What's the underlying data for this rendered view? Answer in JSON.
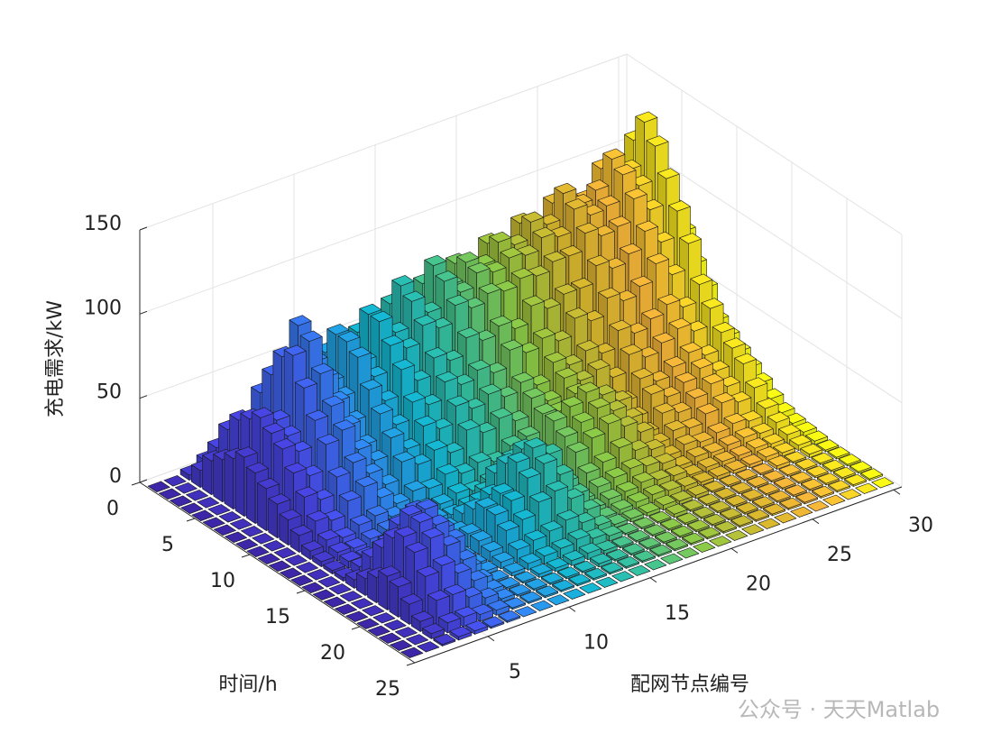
{
  "chart_data": {
    "type": "bar3",
    "xlabel": "配网节点编号",
    "ylabel": "时间/h",
    "zlabel": "充电需求/kW",
    "watermark": "公众号 · 天天Matlab",
    "xlim": [
      0.5,
      30.5
    ],
    "ylim": [
      0,
      25
    ],
    "zlim": [
      0,
      150
    ],
    "xticks": [
      5,
      10,
      15,
      20,
      25,
      30
    ],
    "yticks": [
      0,
      5,
      10,
      15,
      20,
      25
    ],
    "zticks": [
      0,
      50,
      100,
      150
    ],
    "grid": true,
    "colormap": [
      "#3e26a8",
      "#4a4cf0",
      "#2f8ff5",
      "#14b9d6",
      "#3ac49a",
      "#8fcb44",
      "#d8b92e",
      "#fbb83a",
      "#f9fb15"
    ],
    "nodes": [
      1,
      2,
      3,
      4,
      5,
      6,
      7,
      8,
      9,
      10,
      11,
      12,
      13,
      14,
      15,
      16,
      17,
      18,
      19,
      20,
      21,
      22,
      23,
      24,
      25,
      26,
      27,
      28,
      29,
      30
    ],
    "hours": [
      1,
      2,
      3,
      4,
      5,
      6,
      7,
      8,
      9,
      10,
      11,
      12,
      13,
      14,
      15,
      16,
      17,
      18,
      19,
      20,
      21,
      22,
      23,
      24
    ],
    "z": [
      [
        0,
        0,
        3,
        8,
        5,
        12,
        10,
        15,
        8,
        20,
        12,
        18,
        25,
        15,
        30,
        22,
        28,
        35,
        30,
        40,
        38,
        45,
        50,
        42,
        55,
        48,
        60,
        52,
        70,
        45
      ],
      [
        0,
        0,
        10,
        20,
        15,
        30,
        25,
        35,
        20,
        40,
        30,
        45,
        35,
        50,
        40,
        55,
        45,
        60,
        50,
        65,
        55,
        70,
        60,
        80,
        70,
        75,
        85,
        80,
        95,
        60
      ],
      [
        0,
        0,
        20,
        35,
        30,
        50,
        45,
        55,
        40,
        60,
        45,
        65,
        55,
        75,
        60,
        80,
        70,
        85,
        75,
        90,
        80,
        95,
        85,
        100,
        90,
        95,
        110,
        100,
        120,
        80
      ],
      [
        0,
        0,
        25,
        45,
        40,
        65,
        60,
        70,
        50,
        75,
        55,
        80,
        65,
        90,
        70,
        95,
        80,
        90,
        85,
        95,
        90,
        100,
        95,
        110,
        100,
        105,
        120,
        110,
        135,
        90
      ],
      [
        0,
        0,
        30,
        50,
        45,
        80,
        95,
        70,
        55,
        75,
        60,
        80,
        70,
        85,
        75,
        90,
        80,
        88,
        85,
        90,
        88,
        95,
        92,
        105,
        98,
        100,
        115,
        105,
        125,
        85
      ],
      [
        0,
        0,
        35,
        55,
        50,
        85,
        90,
        65,
        50,
        70,
        55,
        70,
        65,
        75,
        70,
        80,
        75,
        80,
        78,
        82,
        80,
        85,
        85,
        95,
        90,
        92,
        105,
        95,
        110,
        75
      ],
      [
        0,
        0,
        30,
        50,
        45,
        70,
        75,
        55,
        40,
        55,
        45,
        60,
        50,
        60,
        55,
        65,
        60,
        65,
        60,
        70,
        65,
        70,
        70,
        80,
        75,
        80,
        90,
        80,
        95,
        60
      ],
      [
        0,
        0,
        25,
        45,
        40,
        55,
        60,
        45,
        30,
        45,
        35,
        45,
        40,
        50,
        45,
        50,
        45,
        55,
        50,
        55,
        50,
        60,
        55,
        65,
        60,
        65,
        75,
        65,
        80,
        50
      ],
      [
        0,
        0,
        20,
        35,
        30,
        45,
        50,
        35,
        25,
        35,
        25,
        35,
        30,
        40,
        35,
        40,
        35,
        40,
        35,
        45,
        40,
        45,
        40,
        50,
        45,
        50,
        55,
        50,
        60,
        35
      ],
      [
        0,
        0,
        15,
        25,
        20,
        30,
        35,
        25,
        15,
        25,
        20,
        25,
        20,
        30,
        25,
        30,
        25,
        35,
        30,
        40,
        35,
        38,
        30,
        40,
        35,
        40,
        45,
        40,
        50,
        30
      ],
      [
        0,
        0,
        10,
        15,
        12,
        20,
        25,
        15,
        8,
        12,
        10,
        15,
        12,
        15,
        12,
        18,
        20,
        30,
        28,
        35,
        30,
        25,
        20,
        30,
        25,
        30,
        35,
        30,
        40,
        25
      ],
      [
        0,
        0,
        5,
        8,
        6,
        10,
        12,
        8,
        4,
        6,
        5,
        8,
        6,
        8,
        6,
        10,
        15,
        30,
        35,
        40,
        35,
        28,
        15,
        25,
        20,
        25,
        30,
        25,
        35,
        20
      ],
      [
        0,
        0,
        3,
        5,
        4,
        6,
        8,
        5,
        2,
        4,
        3,
        5,
        10,
        15,
        12,
        8,
        12,
        25,
        30,
        35,
        30,
        22,
        10,
        18,
        15,
        20,
        25,
        20,
        30,
        15
      ],
      [
        0,
        0,
        2,
        4,
        3,
        5,
        6,
        4,
        2,
        3,
        8,
        12,
        25,
        30,
        28,
        10,
        8,
        20,
        25,
        30,
        25,
        18,
        8,
        12,
        10,
        15,
        18,
        15,
        20,
        10
      ],
      [
        0,
        0,
        2,
        5,
        8,
        10,
        8,
        4,
        2,
        5,
        15,
        20,
        35,
        40,
        35,
        15,
        5,
        12,
        15,
        20,
        15,
        12,
        5,
        8,
        6,
        8,
        10,
        8,
        12,
        6
      ],
      [
        0,
        0,
        5,
        15,
        20,
        25,
        15,
        5,
        2,
        8,
        20,
        25,
        40,
        45,
        38,
        18,
        4,
        8,
        10,
        12,
        10,
        8,
        3,
        5,
        4,
        5,
        6,
        5,
        8,
        4
      ],
      [
        0,
        0,
        10,
        25,
        35,
        40,
        25,
        8,
        2,
        8,
        20,
        25,
        35,
        40,
        30,
        15,
        3,
        5,
        6,
        8,
        6,
        5,
        2,
        3,
        3,
        3,
        4,
        3,
        5,
        3
      ],
      [
        0,
        0,
        15,
        35,
        45,
        45,
        30,
        10,
        2,
        6,
        15,
        18,
        25,
        28,
        20,
        10,
        2,
        3,
        4,
        5,
        4,
        3,
        2,
        2,
        2,
        2,
        3,
        2,
        3,
        2
      ],
      [
        0,
        0,
        20,
        40,
        45,
        40,
        28,
        8,
        2,
        4,
        8,
        10,
        12,
        15,
        10,
        5,
        2,
        2,
        2,
        3,
        2,
        2,
        1,
        1,
        1,
        1,
        2,
        1,
        2,
        1
      ],
      [
        0,
        0,
        18,
        35,
        40,
        32,
        20,
        5,
        1,
        2,
        4,
        5,
        6,
        8,
        5,
        3,
        1,
        1,
        1,
        2,
        1,
        1,
        1,
        1,
        1,
        1,
        1,
        1,
        1,
        1
      ],
      [
        0,
        0,
        12,
        25,
        28,
        20,
        12,
        3,
        1,
        1,
        2,
        2,
        3,
        4,
        2,
        1,
        1,
        1,
        1,
        1,
        1,
        1,
        1,
        1,
        1,
        1,
        1,
        1,
        1,
        1
      ],
      [
        0,
        0,
        6,
        15,
        15,
        10,
        6,
        2,
        1,
        1,
        1,
        1,
        1,
        2,
        1,
        1,
        1,
        1,
        1,
        1,
        1,
        1,
        1,
        1,
        1,
        1,
        1,
        1,
        1,
        1
      ],
      [
        0,
        0,
        3,
        6,
        6,
        4,
        3,
        1,
        1,
        1,
        1,
        1,
        1,
        1,
        1,
        1,
        1,
        1,
        1,
        1,
        1,
        1,
        1,
        1,
        1,
        1,
        1,
        1,
        1,
        1
      ],
      [
        0,
        0,
        1,
        2,
        2,
        1,
        1,
        0,
        0,
        0,
        0,
        0,
        0,
        0,
        0,
        0,
        0,
        0,
        0,
        0,
        0,
        0,
        0,
        0,
        0,
        0,
        0,
        0,
        0,
        0
      ]
    ]
  }
}
